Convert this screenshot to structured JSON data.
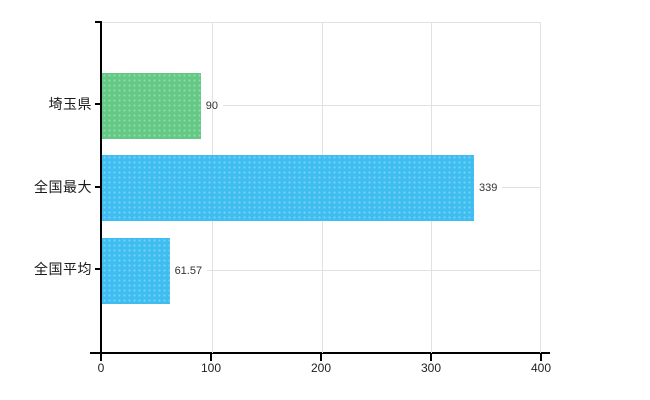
{
  "chart_data": {
    "type": "bar",
    "orientation": "horizontal",
    "title": "",
    "categories": [
      "埼玉県",
      "全国最大",
      "全国平均"
    ],
    "values": [
      90,
      339,
      61.57
    ],
    "bars": [
      {
        "label": "埼玉県",
        "value": 90,
        "value_label": "90",
        "color": "#63c984"
      },
      {
        "label": "全国最大",
        "value": 339,
        "value_label": "339",
        "color": "#3ebdf0"
      },
      {
        "label": "全国平均",
        "value": 61.57,
        "value_label": "61.57",
        "color": "#3ebdf0"
      }
    ],
    "x_axis": {
      "min": 0,
      "max": 400,
      "ticks": [
        "0",
        "100",
        "200",
        "300",
        "400"
      ]
    },
    "grid": true,
    "legend": "none",
    "colors": {
      "green_bar": "#63c984",
      "blue_bar": "#3ebdf0",
      "gridline": "#e1e1e1",
      "axis": "#000000",
      "background": "#ffffff"
    }
  }
}
